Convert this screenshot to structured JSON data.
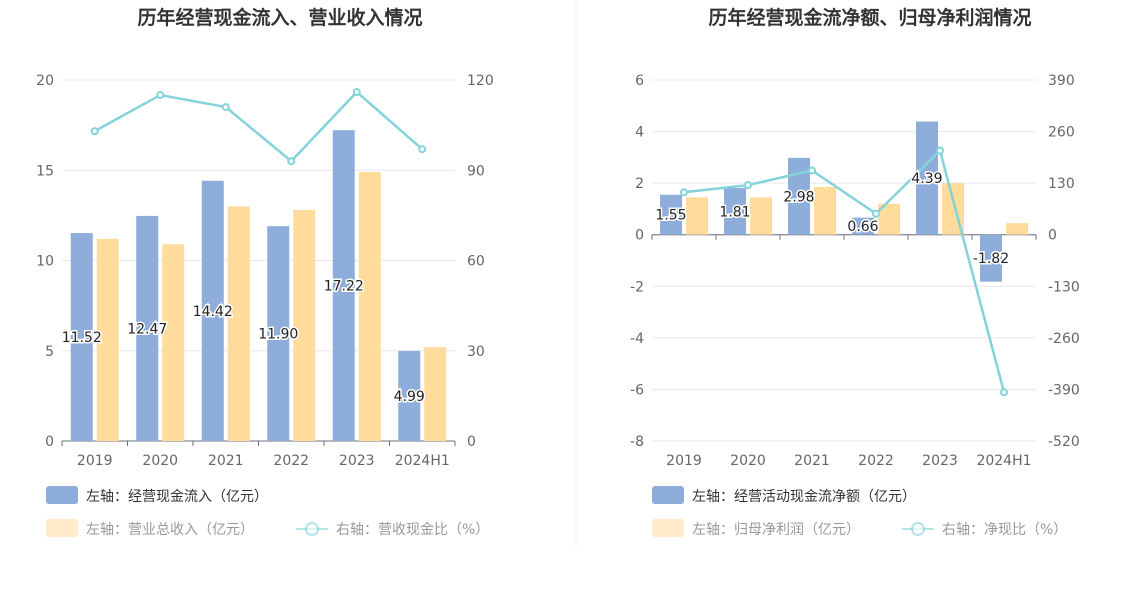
{
  "colors": {
    "bar1": "#8eaddb",
    "bar2": "#ffdb9c",
    "line": "#83d3d8",
    "grid": "#e6e8f0",
    "axis": "#6e7079",
    "legend_primary": "#333333",
    "legend_secondary": "#999999"
  },
  "chart_data": [
    {
      "type": "bar",
      "title": "历年经营现金流入、营业收入情况",
      "categories": [
        "2019",
        "2020",
        "2021",
        "2022",
        "2023",
        "2024H1"
      ],
      "left_axis": {
        "ylim": [
          0,
          20
        ],
        "ticks": [
          "0",
          "5",
          "10",
          "15",
          "20"
        ]
      },
      "right_axis": {
        "ylim": [
          0,
          120
        ],
        "ticks": [
          "0",
          "30",
          "60",
          "90",
          "120"
        ]
      },
      "series": [
        {
          "name": "左轴：经营现金流入（亿元）",
          "type": "bar",
          "axis": "left",
          "values": [
            11.52,
            12.47,
            14.42,
            11.9,
            17.22,
            4.99
          ],
          "labels": [
            "11.52",
            "12.47",
            "14.42",
            "11.90",
            "17.22",
            "4.99"
          ]
        },
        {
          "name": "左轴：营业总收入（亿元）",
          "type": "bar",
          "axis": "left",
          "values": [
            11.2,
            10.9,
            13.0,
            12.8,
            14.9,
            5.2
          ]
        },
        {
          "name": "右轴：营收现金比（%）",
          "type": "line",
          "axis": "right",
          "values": [
            103,
            115,
            111,
            93,
            116,
            97
          ]
        }
      ],
      "legend": {
        "placement": "bottom-left"
      }
    },
    {
      "type": "bar",
      "title": "历年经营现金流净额、归母净利润情况",
      "categories": [
        "2019",
        "2020",
        "2021",
        "2022",
        "2023",
        "2024H1"
      ],
      "left_axis": {
        "ylim": [
          -8,
          6
        ],
        "ticks": [
          "-8",
          "-6",
          "-4",
          "-2",
          "0",
          "2",
          "4",
          "6"
        ]
      },
      "right_axis": {
        "ylim": [
          -520,
          390
        ],
        "ticks": [
          "-520",
          "-390",
          "-260",
          "-130",
          "0",
          "130",
          "260",
          "390"
        ]
      },
      "series": [
        {
          "name": "左轴：经营活动现金流净额（亿元）",
          "type": "bar",
          "axis": "left",
          "values": [
            1.55,
            1.81,
            2.98,
            0.66,
            4.39,
            -1.82
          ],
          "labels": [
            "1.55",
            "1.81",
            "2.98",
            "0.66",
            "4.39",
            "-1.82"
          ]
        },
        {
          "name": "左轴：归母净利润（亿元）",
          "type": "bar",
          "axis": "left",
          "values": [
            1.45,
            1.45,
            1.85,
            1.2,
            2.0,
            0.45
          ]
        },
        {
          "name": "右轴：净现比（%）",
          "type": "line",
          "axis": "right",
          "values": [
            107,
            125,
            162,
            53,
            212,
            -397
          ]
        }
      ],
      "legend": {
        "placement": "bottom-left"
      }
    }
  ]
}
